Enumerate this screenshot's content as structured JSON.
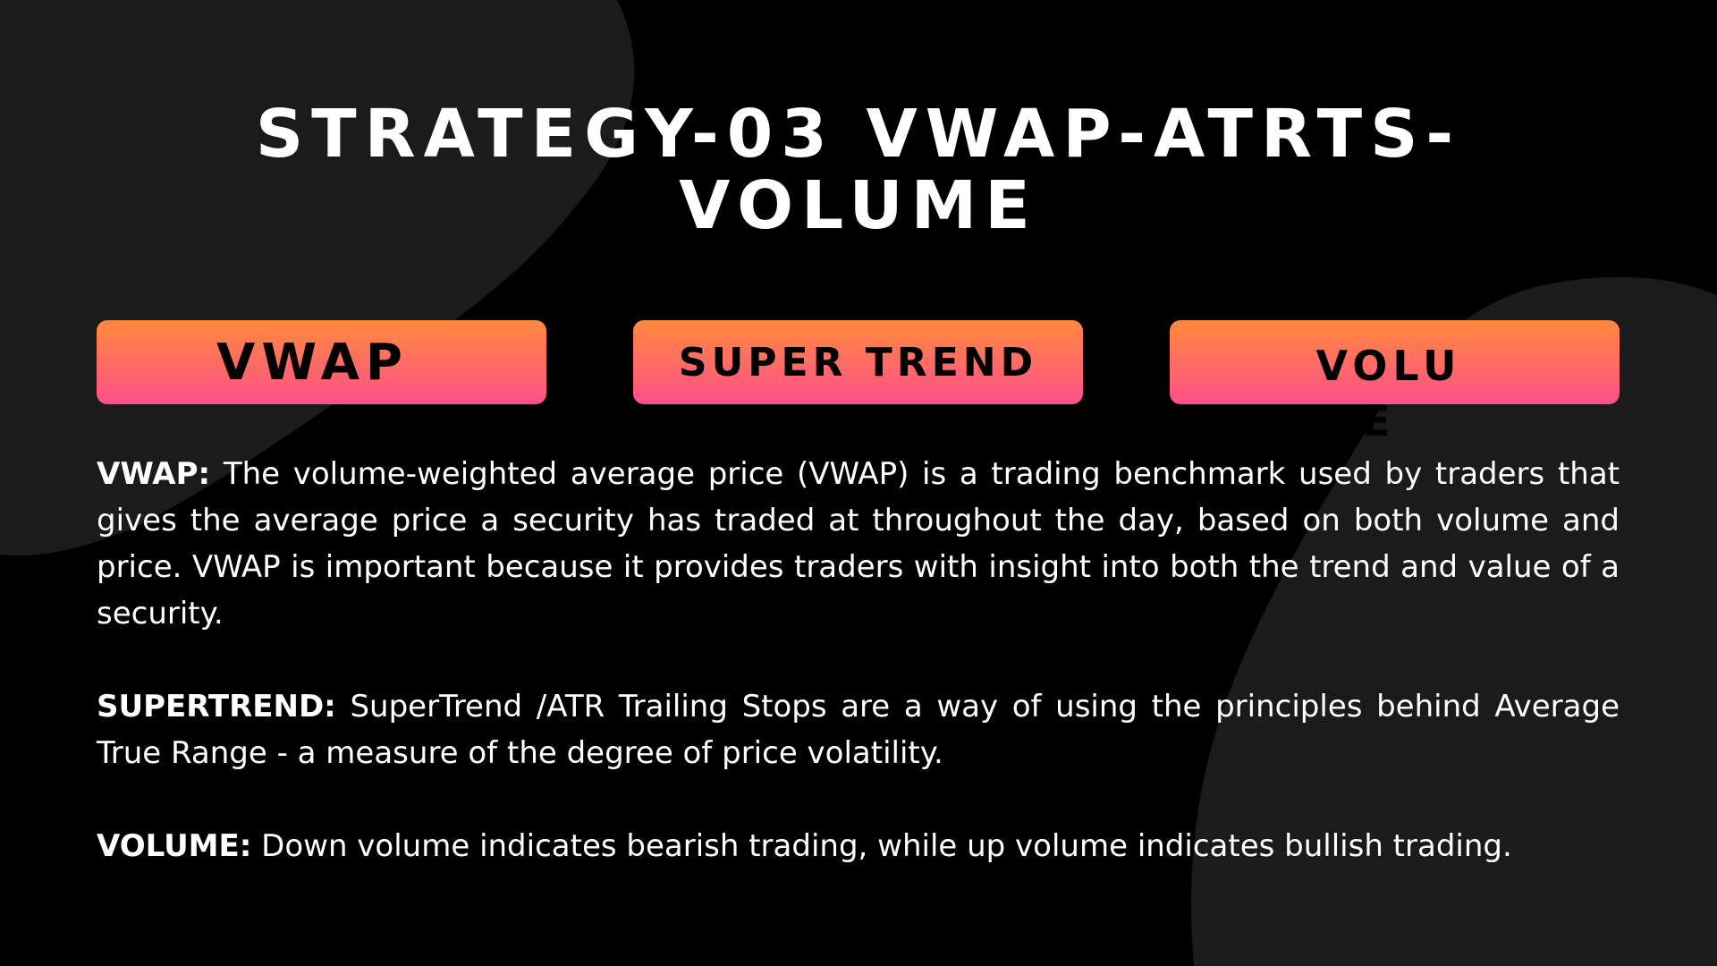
{
  "slide": {
    "title": "STRATEGY-03 VWAP-ATRTS-VOLUME",
    "background_color": "#000000",
    "shape_color": "#1b1b1b"
  },
  "pills": [
    {
      "label": "VWAP"
    },
    {
      "label": "SUPER TREND"
    },
    {
      "label": "VOLUME"
    }
  ],
  "pill_gradient": {
    "top": "#ff8a3d",
    "bottom": "#ff4f8a"
  },
  "descriptions": [
    {
      "term": "VWAP:",
      "text": "The volume-weighted average price (VWAP) is a trading benchmark used by traders that gives the average price a security has traded at throughout the day, based on both volume and price. VWAP is important because it provides traders with insight into both the trend and value of a security."
    },
    {
      "term": "SUPERTREND:",
      "text": "SuperTrend /ATR Trailing Stops are a way of using the principles behind Average True Range - a measure of the degree of price volatility."
    },
    {
      "term": "VOLUME:",
      "text": "Down volume indicates bearish trading, while up volume indicates bullish trading."
    }
  ]
}
